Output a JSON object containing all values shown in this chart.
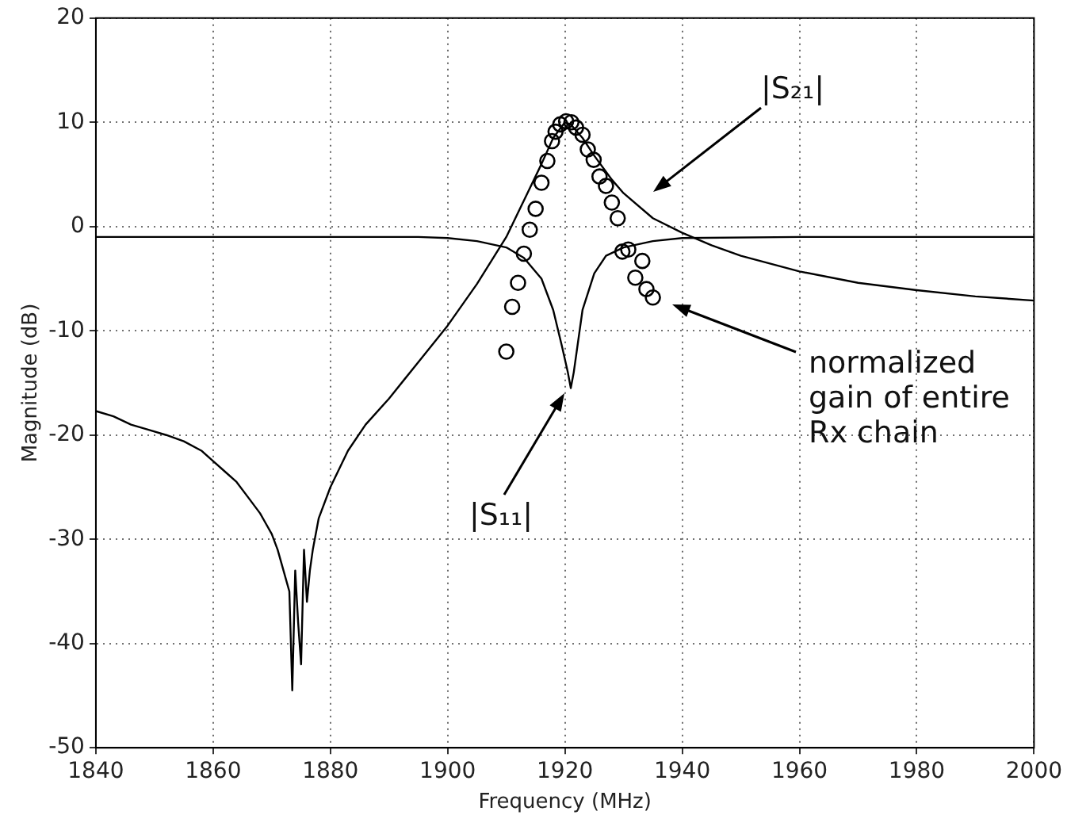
{
  "chart_data": {
    "type": "line",
    "xlabel": "Frequency (MHz)",
    "ylabel": "Magnitude (dB)",
    "xlim": [
      1840,
      2000
    ],
    "xticks": [
      1840,
      1860,
      1880,
      1900,
      1920,
      1940,
      1960,
      1980,
      2000
    ],
    "ylim": [
      -50,
      20
    ],
    "yticks": [
      -50,
      -40,
      -30,
      -20,
      -10,
      0,
      10,
      20
    ],
    "grid": true,
    "legend": false,
    "line_style": "solid",
    "series": [
      {
        "color": "#000000",
        "x": [
          1840,
          1843,
          1846,
          1849,
          1852,
          1855,
          1858,
          1860,
          1862,
          1864,
          1866,
          1868,
          1869,
          1870,
          1871,
          1872,
          1873,
          1873.5,
          1874,
          1874.5,
          1875,
          1875.5,
          1876,
          1876.5,
          1877,
          1878,
          1880,
          1883,
          1886,
          1890,
          1895,
          1900,
          1905,
          1910,
          1913,
          1916,
          1918,
          1920,
          1921,
          1923,
          1925,
          1928,
          1930,
          1935,
          1940,
          1945,
          1950,
          1960,
          1970,
          1980,
          1990,
          2000
        ],
        "values": [
          -17.7,
          -18.2,
          -19,
          -19.5,
          -20,
          -20.6,
          -21.5,
          -22.5,
          -23.5,
          -24.5,
          -26,
          -27.5,
          -28.5,
          -29.5,
          -31,
          -33,
          -35,
          -44.5,
          -33,
          -38,
          -42,
          -31,
          -36,
          -33,
          -31,
          -28,
          -25,
          -21.5,
          -19,
          -16.5,
          -13,
          -9.5,
          -5.5,
          -1,
          2.5,
          6,
          8.5,
          10,
          9.8,
          8.5,
          6.8,
          4.5,
          3.2,
          0.8,
          -0.6,
          -1.8,
          -2.8,
          -4.3,
          -5.4,
          -6.1,
          -6.7,
          -7.1
        ]
      },
      {
        "color": "#000000",
        "x": [
          1840,
          1860,
          1880,
          1895,
          1900,
          1905,
          1910,
          1913,
          1916,
          1918,
          1919.5,
          1920.5,
          1921,
          1921.5,
          1922,
          1923,
          1925,
          1927,
          1930,
          1935,
          1940,
          1960,
          1980,
          2000
        ],
        "values": [
          -1,
          -1,
          -1,
          -1,
          -1.1,
          -1.4,
          -2,
          -3,
          -5,
          -8,
          -11.5,
          -14,
          -15.5,
          -14,
          -12,
          -8,
          -4.5,
          -2.8,
          -2,
          -1.4,
          -1.1,
          -1,
          -1,
          -1
        ]
      },
      {
        "type": "scatter",
        "color": "#000000",
        "marker": "circle",
        "x": [
          1910,
          1911,
          1912,
          1913,
          1914,
          1915,
          1916,
          1917,
          1917.8,
          1918.4,
          1919.2,
          1920.2,
          1921.1,
          1921.9,
          1923,
          1923.9,
          1924.9,
          1925.9,
          1927,
          1928,
          1929,
          1929.8,
          1930.8,
          1932,
          1933.2,
          1933.9,
          1935
        ],
        "values": [
          -12,
          -7.7,
          -5.4,
          -2.6,
          -0.3,
          1.7,
          4.2,
          6.3,
          8.2,
          9.1,
          9.8,
          10.1,
          10,
          9.5,
          8.8,
          7.4,
          6.4,
          4.8,
          3.9,
          2.3,
          0.8,
          -2.4,
          -2.2,
          -4.9,
          -3.3,
          -6,
          -6.8
        ]
      }
    ],
    "annotations": [
      "|S₂₁|",
      "|S₁₁|",
      "normalized gain of entire Rx chain"
    ]
  }
}
